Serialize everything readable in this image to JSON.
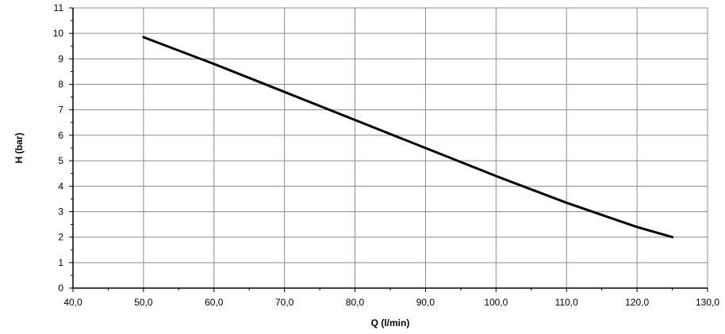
{
  "chart_data": {
    "type": "line",
    "xlabel": "Q (l/min)",
    "ylabel": "H (bar)",
    "xlim": [
      40,
      130
    ],
    "ylim": [
      0,
      11
    ],
    "x_ticks": [
      "40,0",
      "50,0",
      "60,0",
      "70,0",
      "80,0",
      "90,0",
      "100,0",
      "110,0",
      "120,0",
      "130,0"
    ],
    "y_ticks": [
      "0",
      "1",
      "2",
      "3",
      "4",
      "5",
      "6",
      "7",
      "8",
      "9",
      "10",
      "11"
    ],
    "grid": true,
    "series": [
      {
        "x": [
          50,
          60,
          70,
          80,
          90,
          100,
          110,
          120,
          125
        ],
        "y": [
          9.85,
          8.8,
          7.7,
          6.6,
          5.5,
          4.4,
          3.35,
          2.4,
          2.0
        ]
      }
    ],
    "colors": {
      "line": "#000000",
      "grid_major": "#8c8c8c",
      "axis": "#000000"
    }
  }
}
